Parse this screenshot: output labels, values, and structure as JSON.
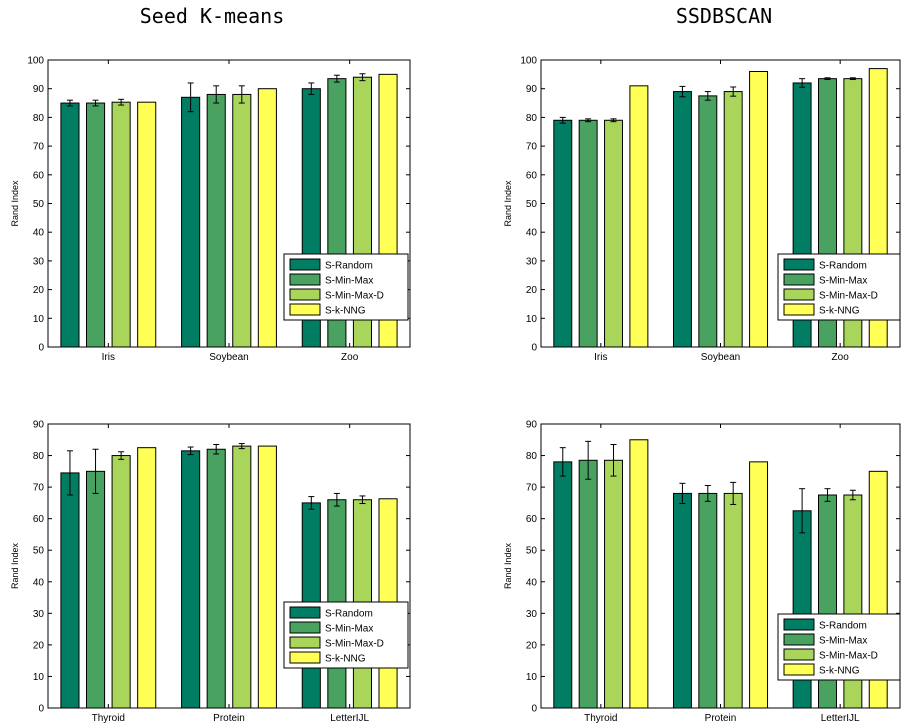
{
  "titles": {
    "left": "Seed K-means",
    "right": "SSDBSCAN"
  },
  "series_colors": {
    "S-Random": "#007d63",
    "S-Min-Max": "#4aa261",
    "S-Min-Max-D": "#a8d55a",
    "S-k-NNG": "#ffff55"
  },
  "chart_data": [
    {
      "type": "bar",
      "title": "",
      "xlabel": "",
      "ylabel": "Rand Index",
      "ylim": [
        0,
        100
      ],
      "yticks": [
        0,
        10,
        20,
        30,
        40,
        50,
        60,
        70,
        80,
        90,
        100
      ],
      "grid": false,
      "legend": "lower-right",
      "categories": [
        "Iris",
        "Soybean",
        "Zoo"
      ],
      "series": [
        {
          "name": "S-Random",
          "values": [
            85,
            87,
            90
          ],
          "errors": [
            1,
            5,
            2
          ]
        },
        {
          "name": "S-Min-Max",
          "values": [
            85,
            88,
            93.5
          ],
          "errors": [
            1,
            3,
            1.2
          ]
        },
        {
          "name": "S-Min-Max-D",
          "values": [
            85.3,
            88,
            94
          ],
          "errors": [
            1,
            3,
            1.2
          ]
        },
        {
          "name": "S-k-NNG",
          "values": [
            85.3,
            90,
            95
          ],
          "errors": [
            0,
            0,
            0
          ]
        }
      ]
    },
    {
      "type": "bar",
      "title": "",
      "xlabel": "",
      "ylabel": "Rand Index",
      "ylim": [
        0,
        100
      ],
      "yticks": [
        0,
        10,
        20,
        30,
        40,
        50,
        60,
        70,
        80,
        90,
        100
      ],
      "grid": false,
      "legend": "lower-right",
      "categories": [
        "Iris",
        "Soybean",
        "Zoo"
      ],
      "series": [
        {
          "name": "S-Random",
          "values": [
            79,
            89,
            92
          ],
          "errors": [
            1,
            1.8,
            1.5
          ]
        },
        {
          "name": "S-Min-Max",
          "values": [
            79,
            87.5,
            93.5
          ],
          "errors": [
            0.5,
            1.5,
            0.3
          ]
        },
        {
          "name": "S-Min-Max-D",
          "values": [
            79,
            89,
            93.5
          ],
          "errors": [
            0.5,
            1.6,
            0.3
          ]
        },
        {
          "name": "S-k-NNG",
          "values": [
            91,
            96,
            97
          ],
          "errors": [
            0,
            0,
            0
          ]
        }
      ]
    },
    {
      "type": "bar",
      "title": "",
      "xlabel": "",
      "ylabel": "Rand Index",
      "ylim": [
        0,
        90
      ],
      "yticks": [
        0,
        10,
        20,
        30,
        40,
        50,
        60,
        70,
        80,
        90
      ],
      "grid": false,
      "legend": "lower-right",
      "categories": [
        "Thyroid",
        "Protein",
        "LetterIJL"
      ],
      "series": [
        {
          "name": "S-Random",
          "values": [
            74.5,
            81.5,
            65
          ],
          "errors": [
            7,
            1.2,
            2
          ]
        },
        {
          "name": "S-Min-Max",
          "values": [
            75,
            82,
            66
          ],
          "errors": [
            7,
            1.5,
            2
          ]
        },
        {
          "name": "S-Min-Max-D",
          "values": [
            80,
            83,
            66
          ],
          "errors": [
            1.2,
            0.8,
            1.2
          ]
        },
        {
          "name": "S-k-NNG",
          "values": [
            82.5,
            83,
            66.3
          ],
          "errors": [
            0,
            0,
            0
          ]
        }
      ]
    },
    {
      "type": "bar",
      "title": "",
      "xlabel": "",
      "ylabel": "Rand Index",
      "ylim": [
        0,
        90
      ],
      "yticks": [
        0,
        10,
        20,
        30,
        40,
        50,
        60,
        70,
        80,
        90
      ],
      "grid": false,
      "legend": "lower-right",
      "categories": [
        "Thyroid",
        "Protein",
        "LetterIJL"
      ],
      "series": [
        {
          "name": "S-Random",
          "values": [
            78,
            68,
            62.5
          ],
          "errors": [
            4.5,
            3.2,
            7
          ]
        },
        {
          "name": "S-Min-Max",
          "values": [
            78.5,
            68,
            67.5
          ],
          "errors": [
            6,
            2.5,
            2
          ]
        },
        {
          "name": "S-Min-Max-D",
          "values": [
            78.5,
            68,
            67.5
          ],
          "errors": [
            5,
            3.5,
            1.5
          ]
        },
        {
          "name": "S-k-NNG",
          "values": [
            85,
            78,
            75
          ],
          "errors": [
            0,
            0,
            0
          ]
        }
      ]
    }
  ]
}
